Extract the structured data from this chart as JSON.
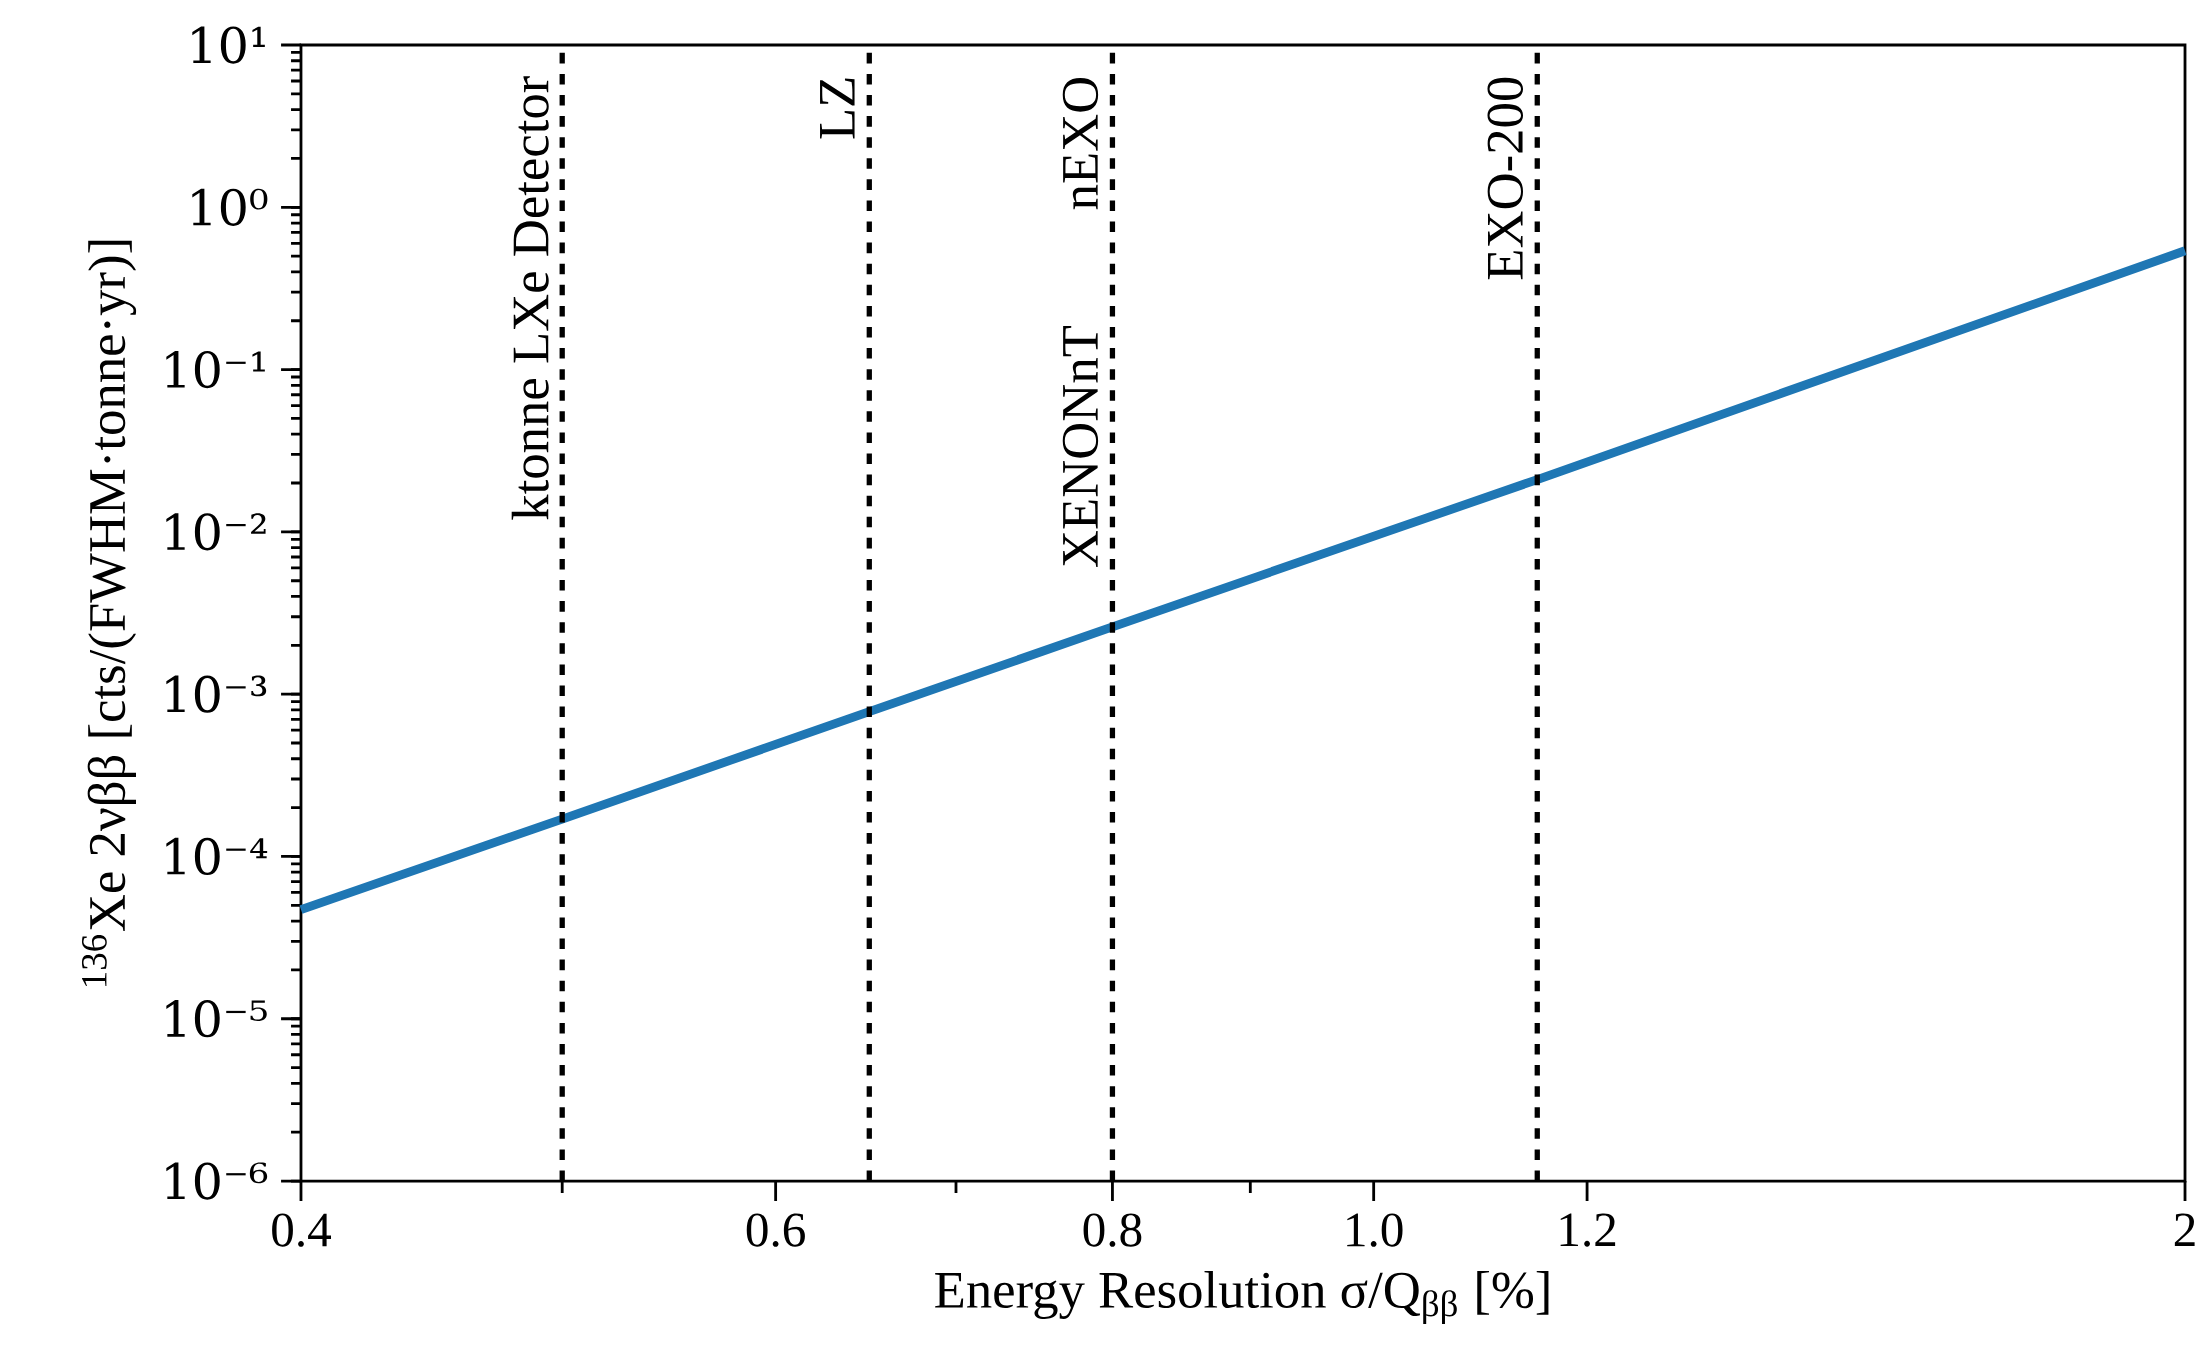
{
  "chart_data": {
    "type": "line",
    "xlabel": "Energy Resolution σ/Q$_{ββ}$ [%]",
    "ylabel": "$^{136}$Xe 2νββ [cts/(FWHM·tonne·yr)]",
    "log": "xy",
    "x": [
      0.4,
      0.5,
      0.65,
      0.8,
      1.15,
      2
    ],
    "series": [
      {
        "color": "#1f77b4",
        "values": [
          4.7e-05,
          0.00017,
          0.00078,
          0.0026,
          0.021,
          0.54
        ]
      }
    ],
    "xlim": [
      0.4,
      2
    ],
    "xticks": [
      {
        "value": 0.4,
        "label": "0.4"
      },
      {
        "value": 0.5,
        "label": null
      },
      {
        "value": 0.6,
        "label": "0.6"
      },
      {
        "value": 0.7,
        "label": null
      },
      {
        "value": 0.8,
        "label": "0.8"
      },
      {
        "value": 0.9,
        "label": null
      },
      {
        "value": 1.0,
        "label": "1.0"
      },
      {
        "value": 1.2,
        "label": "1.2"
      },
      {
        "value": 2,
        "label": "2"
      }
    ],
    "ylim": [
      1e-06,
      10
    ],
    "yticks": [
      {
        "value": 1e-06,
        "label": "10⁻⁶"
      },
      {
        "value": 1e-05,
        "label": "10⁻⁵"
      },
      {
        "value": 0.0001,
        "label": "10⁻⁴"
      },
      {
        "value": 0.001,
        "label": "10⁻³"
      },
      {
        "value": 0.01,
        "label": "10⁻²"
      },
      {
        "value": 0.1,
        "label": "10⁻¹"
      },
      {
        "value": 1,
        "label": "10⁰"
      },
      {
        "value": 10,
        "label": "10¹"
      }
    ],
    "ref_lines": [
      {
        "axis": "x",
        "value": 0.5,
        "label": "ktonne LXe Detector",
        "line_style": "dashed"
      },
      {
        "axis": "x",
        "value": 0.65,
        "label": "LZ",
        "line_style": "dashed"
      },
      {
        "axis": "x",
        "value": 0.8,
        "label": "nEXO",
        "line_style": "dashed"
      },
      {
        "axis": "x",
        "value": 1.15,
        "label": "EXO-200",
        "line_style": "dashed"
      }
    ],
    "annotations": [
      {
        "text": "XENONnT",
        "x": 0.8,
        "y": 0.19
      }
    ]
  }
}
